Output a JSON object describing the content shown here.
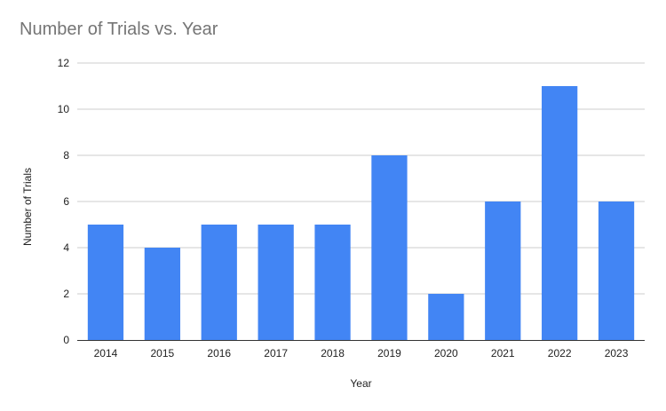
{
  "chart_data": {
    "type": "bar",
    "title": "Number of Trials vs. Year",
    "xlabel": "Year",
    "ylabel": "Number of Trials",
    "categories": [
      "2014",
      "2015",
      "2016",
      "2017",
      "2018",
      "2019",
      "2020",
      "2021",
      "2022",
      "2023"
    ],
    "values": [
      5,
      4,
      5,
      5,
      5,
      8,
      2,
      6,
      11,
      6
    ],
    "ylim": [
      0,
      12
    ],
    "yticks": [
      "0",
      "2",
      "4",
      "6",
      "8",
      "10",
      "12"
    ],
    "grid": true,
    "legend": "none",
    "bar_color": "#4285f4",
    "grid_color": "#cccccc",
    "axis_color": "#333333"
  }
}
